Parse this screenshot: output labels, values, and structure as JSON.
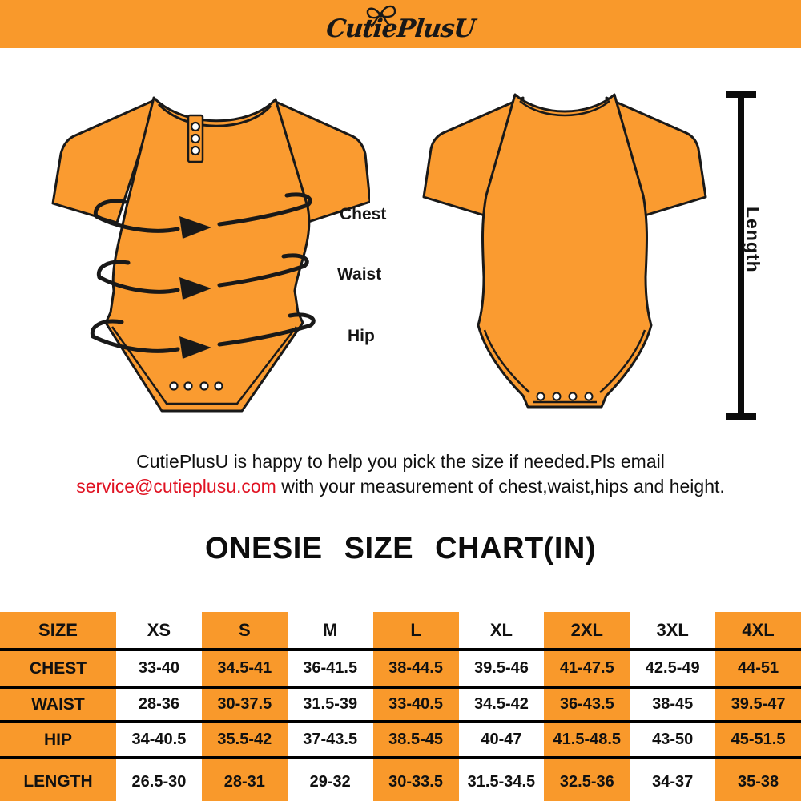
{
  "brand": {
    "name": "CutiePlusU"
  },
  "colors": {
    "orange": "#F9992B",
    "onesie_orange": "#FA9B30",
    "email_red": "#E01222",
    "ink": "#111111"
  },
  "diagram": {
    "front_labels": [
      "Chest",
      "Waist",
      "Hip"
    ],
    "length_label": "Length"
  },
  "note": {
    "line1": "CutiePlusU is happy to help you pick the size if needed.Pls email",
    "email": "service@cutieplusu.com",
    "line2_rest": " with your measurement of chest,waist,hips and height."
  },
  "chart_title": "ONESIE  SIZE  CHART(IN)",
  "size_table": {
    "columns": [
      "SIZE",
      "XS",
      "S",
      "M",
      "L",
      "XL",
      "2XL",
      "3XL",
      "4XL"
    ],
    "rows": [
      {
        "label": "CHEST",
        "values": [
          "33-40",
          "34.5-41",
          "36-41.5",
          "38-44.5",
          "39.5-46",
          "41-47.5",
          "42.5-49",
          "44-51"
        ]
      },
      {
        "label": "WAIST",
        "values": [
          "28-36",
          "30-37.5",
          "31.5-39",
          "33-40.5",
          "34.5-42",
          "36-43.5",
          "38-45",
          "39.5-47"
        ]
      },
      {
        "label": "HIP",
        "values": [
          "34-40.5",
          "35.5-42",
          "37-43.5",
          "38.5-45",
          "40-47",
          "41.5-48.5",
          "43-50",
          "45-51.5"
        ]
      },
      {
        "label": "LENGTH",
        "values": [
          "26.5-30",
          "28-31",
          "29-32",
          "30-33.5",
          "31.5-34.5",
          "32.5-36",
          "34-37",
          "35-38"
        ]
      }
    ]
  }
}
